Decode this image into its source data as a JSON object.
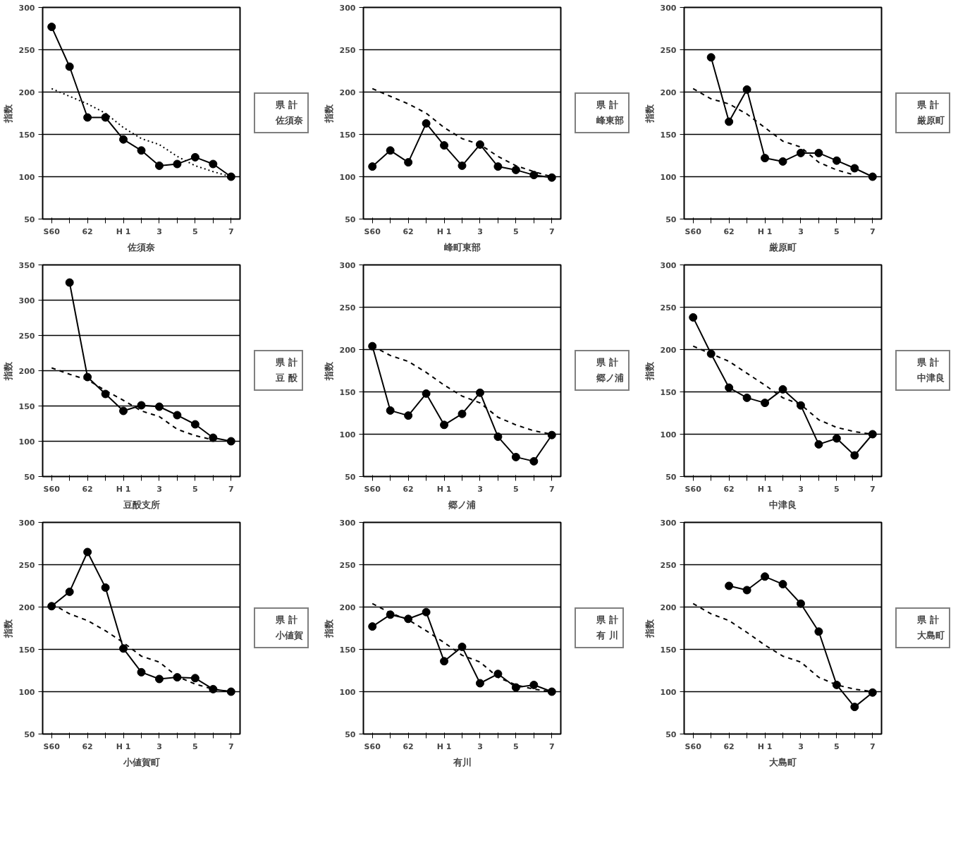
{
  "chart_data": [
    {
      "type": "line",
      "xlabel": "佐須奈",
      "ylabel": "指数",
      "categories": [
        "S60",
        null,
        "62",
        null,
        "H 1",
        null,
        "3",
        null,
        "5",
        null,
        "7"
      ],
      "ylim": [
        50,
        300
      ],
      "yticks": [
        50,
        100,
        150,
        200,
        250,
        300
      ],
      "grid": "y",
      "legend": "right",
      "series": [
        {
          "name": "県 計",
          "color": "#000000",
          "line_style": "dotted",
          "marker": "none",
          "values": [
            204,
            195,
            186,
            175,
            158,
            145,
            138,
            124,
            113,
            106,
            100
          ]
        },
        {
          "name": "佐須奈",
          "color": "#000000",
          "line_style": "solid",
          "marker": "circle",
          "values": [
            277,
            230,
            170,
            170,
            144,
            131,
            113,
            115,
            123,
            115,
            100
          ]
        }
      ]
    },
    {
      "type": "line",
      "xlabel": "峰町東部",
      "ylabel": "指数",
      "categories": [
        "S60",
        null,
        "62",
        null,
        "H 1",
        null,
        "3",
        null,
        "5",
        null,
        "7"
      ],
      "ylim": [
        50,
        300
      ],
      "yticks": [
        50,
        100,
        150,
        200,
        250,
        300
      ],
      "grid": "y",
      "legend": "right",
      "series": [
        {
          "name": "県 計",
          "color": "#000000",
          "line_style": "dashed",
          "marker": "none",
          "values": [
            204,
            195,
            186,
            175,
            158,
            145,
            138,
            124,
            113,
            106,
            100
          ]
        },
        {
          "name": "峰東部",
          "color": "#000000",
          "line_style": "solid",
          "marker": "circle",
          "values": [
            112,
            131,
            117,
            163,
            137,
            113,
            138,
            112,
            108,
            102,
            99
          ]
        }
      ]
    },
    {
      "type": "line",
      "xlabel": "厳原町",
      "ylabel": "指数",
      "categories": [
        "S60",
        null,
        "62",
        null,
        "H 1",
        null,
        "3",
        null,
        "5",
        null,
        "7"
      ],
      "ylim": [
        50,
        300
      ],
      "yticks": [
        50,
        100,
        150,
        200,
        250,
        300
      ],
      "grid": "y",
      "legend": "right",
      "series": [
        {
          "name": "県 計",
          "color": "#000000",
          "line_style": "dashed",
          "marker": "none",
          "values": [
            204,
            192,
            186,
            174,
            158,
            142,
            135,
            117,
            108,
            102,
            null
          ]
        },
        {
          "name": "厳原町",
          "color": "#000000",
          "line_style": "solid",
          "marker": "circle",
          "values": [
            null,
            241,
            165,
            203,
            122,
            118,
            128,
            128,
            119,
            110,
            100
          ]
        }
      ]
    },
    {
      "type": "line",
      "xlabel": "豆酘支所",
      "ylabel": "指数",
      "categories": [
        "S60",
        null,
        "62",
        null,
        "H 1",
        null,
        "3",
        null,
        "5",
        null,
        "7"
      ],
      "ylim": [
        50,
        350
      ],
      "yticks": [
        50,
        100,
        150,
        200,
        250,
        300,
        350
      ],
      "grid": "y",
      "legend": "right",
      "series": [
        {
          "name": "県 計",
          "color": "#000000",
          "line_style": "dashed",
          "marker": "none",
          "values": [
            204,
            195,
            187,
            172,
            158,
            143,
            135,
            117,
            108,
            102,
            null
          ]
        },
        {
          "name": "豆 酘",
          "color": "#000000",
          "line_style": "solid",
          "marker": "circle",
          "values": [
            null,
            325,
            191,
            167,
            143,
            151,
            149,
            137,
            124,
            105,
            100
          ]
        }
      ]
    },
    {
      "type": "line",
      "xlabel": "郷ノ浦",
      "ylabel": "指数",
      "categories": [
        "S60",
        null,
        "62",
        null,
        "H 1",
        null,
        "3",
        null,
        "5",
        null,
        "7"
      ],
      "ylim": [
        50,
        300
      ],
      "yticks": [
        50,
        100,
        150,
        200,
        250,
        300
      ],
      "grid": "y",
      "legend": "right",
      "series": [
        {
          "name": "県 計",
          "color": "#000000",
          "line_style": "dashed",
          "marker": "none",
          "values": [
            204,
            193,
            186,
            173,
            158,
            145,
            137,
            120,
            111,
            104,
            100
          ]
        },
        {
          "name": "郷ノ浦",
          "color": "#000000",
          "line_style": "solid",
          "marker": "circle",
          "values": [
            204,
            128,
            122,
            148,
            111,
            124,
            149,
            97,
            73,
            68,
            99
          ]
        }
      ]
    },
    {
      "type": "line",
      "xlabel": "中津良",
      "ylabel": "指数",
      "categories": [
        "S60",
        null,
        "62",
        null,
        "H 1",
        null,
        "3",
        null,
        "5",
        null,
        "7"
      ],
      "ylim": [
        50,
        300
      ],
      "yticks": [
        50,
        100,
        150,
        200,
        250,
        300
      ],
      "grid": "y",
      "legend": "right",
      "series": [
        {
          "name": "県 計",
          "color": "#000000",
          "line_style": "dashed",
          "marker": "none",
          "values": [
            204,
            195,
            186,
            172,
            158,
            143,
            135,
            117,
            108,
            103,
            100
          ]
        },
        {
          "name": "中津良",
          "color": "#000000",
          "line_style": "solid",
          "marker": "circle",
          "values": [
            238,
            195,
            155,
            143,
            137,
            153,
            134,
            88,
            95,
            75,
            100
          ]
        }
      ]
    },
    {
      "type": "line",
      "xlabel": "小値賀町",
      "ylabel": "指数",
      "categories": [
        "S60",
        null,
        "62",
        null,
        "H 1",
        null,
        "3",
        null,
        "5",
        null,
        "7"
      ],
      "ylim": [
        50,
        300
      ],
      "yticks": [
        50,
        100,
        150,
        200,
        250,
        300
      ],
      "grid": "y",
      "legend": "right",
      "series": [
        {
          "name": "県 計",
          "color": "#000000",
          "line_style": "dashed",
          "marker": "none",
          "values": [
            204,
            192,
            184,
            172,
            158,
            142,
            135,
            118,
            109,
            103,
            100
          ]
        },
        {
          "name": "小値賀",
          "color": "#000000",
          "line_style": "solid",
          "marker": "circle",
          "values": [
            201,
            218,
            265,
            223,
            151,
            123,
            115,
            117,
            116,
            103,
            100
          ]
        }
      ]
    },
    {
      "type": "line",
      "xlabel": "有川",
      "ylabel": "指数",
      "categories": [
        "S60",
        null,
        "62",
        null,
        "H 1",
        null,
        "3",
        null,
        "5",
        null,
        "7"
      ],
      "ylim": [
        50,
        300
      ],
      "yticks": [
        50,
        100,
        150,
        200,
        250,
        300
      ],
      "grid": "y",
      "legend": "right",
      "series": [
        {
          "name": "県 計",
          "color": "#000000",
          "line_style": "dashed",
          "marker": "none",
          "values": [
            204,
            193,
            185,
            172,
            158,
            143,
            135,
            117,
            108,
            103,
            100
          ]
        },
        {
          "name": "有 川",
          "color": "#000000",
          "line_style": "solid",
          "marker": "circle",
          "values": [
            177,
            191,
            186,
            194,
            136,
            153,
            110,
            121,
            105,
            108,
            100
          ]
        }
      ]
    },
    {
      "type": "line",
      "xlabel": "大島町",
      "ylabel": "指数",
      "categories": [
        "S60",
        null,
        "62",
        null,
        "H 1",
        null,
        "3",
        null,
        "5",
        null,
        "7"
      ],
      "ylim": [
        50,
        300
      ],
      "yticks": [
        50,
        100,
        150,
        200,
        250,
        300
      ],
      "grid": "y",
      "legend": "right",
      "series": [
        {
          "name": "県 計",
          "color": "#000000",
          "line_style": "dashed",
          "marker": "none",
          "values": [
            204,
            192,
            184,
            170,
            155,
            142,
            135,
            117,
            108,
            103,
            100
          ]
        },
        {
          "name": "大島町",
          "color": "#000000",
          "line_style": "solid",
          "marker": "circle",
          "values": [
            null,
            null,
            225,
            220,
            236,
            227,
            204,
            171,
            108,
            82,
            99
          ]
        }
      ]
    }
  ]
}
